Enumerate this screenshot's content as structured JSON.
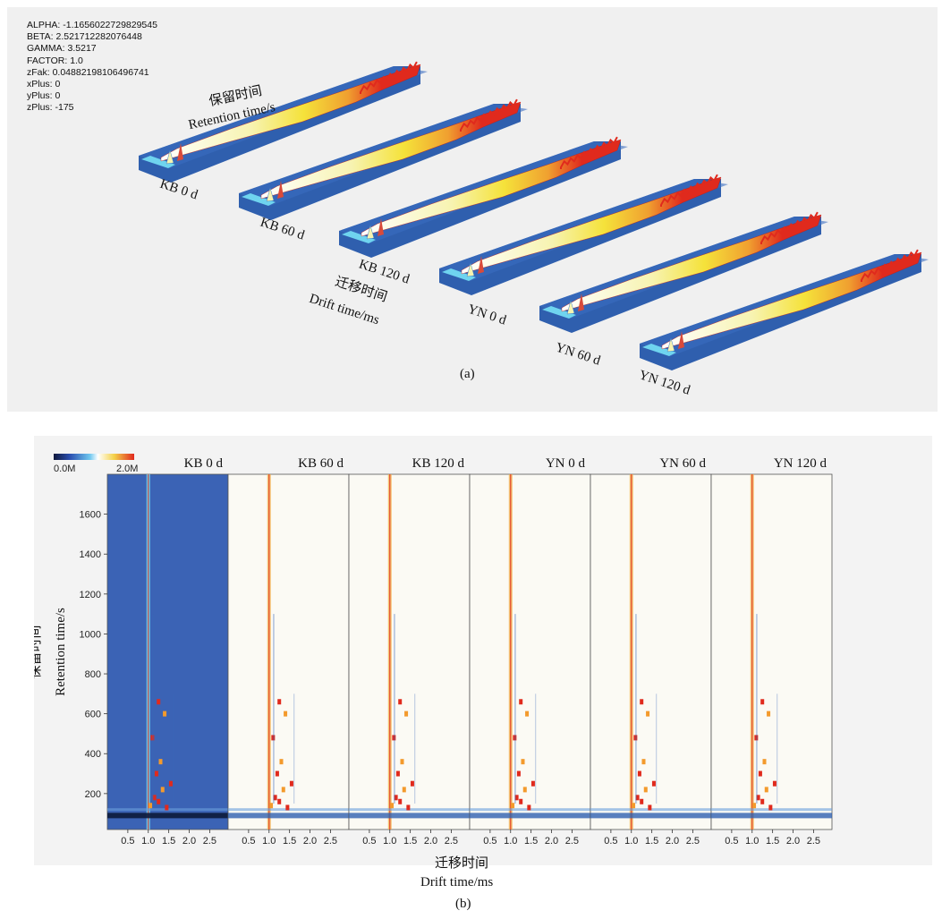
{
  "panel_a": {
    "parameters": [
      "ALPHA: -1.1656022729829545",
      "BETA: 2.521712282076448",
      "GAMMA: 3.5217",
      "FACTOR: 1.0",
      "zFak: 0.04882198106496741",
      "xPlus: 0",
      "yPlus: 0",
      "zPlus: -175"
    ],
    "retention_label_cn": "保留时间",
    "retention_label_en": "Retention  time/s",
    "drift_label_cn": "迁移时间",
    "drift_label_en": "Drift  time/ms",
    "sample_labels": [
      "KB 0 d",
      "KB 60 d",
      "KB 120 d",
      "YN 0 d",
      "YN 60 d",
      "YN 120 d"
    ],
    "caption": "(a)"
  },
  "panel_b": {
    "colorbar_min": "0.0M",
    "colorbar_max": "2.0M",
    "y_label_cn": "保留时间",
    "y_label_en": "Retention  time/s",
    "x_label_cn": "迁移时间",
    "x_label_en": "Drift  time/ms",
    "caption": "(b)"
  },
  "colors": {
    "plane_blue": "#2f5fae",
    "strip_cyan": "#6fd4ef",
    "ridge_red": "#e02a1d",
    "ridge_yellow": "#f5e23a",
    "map_background_first": "#3b63b5",
    "map_background": "#fbfaf4"
  },
  "chart_data": {
    "type": "heatmap",
    "panels": [
      "KB 0 d",
      "KB 60 d",
      "KB 120 d",
      "YN 0 d",
      "YN 60 d",
      "YN 120 d"
    ],
    "x_ticks": [
      0.5,
      1.0,
      1.5,
      2.0,
      2.5
    ],
    "y_ticks": [
      200,
      400,
      600,
      800,
      1000,
      1200,
      1400,
      1600
    ],
    "xlim": [
      0.0,
      2.95
    ],
    "ylim": [
      20,
      1800
    ],
    "reactant_ion_peak_drift": 1.0,
    "intensity_range": [
      0.0,
      2.0
    ],
    "intensity_unit": "M"
  }
}
